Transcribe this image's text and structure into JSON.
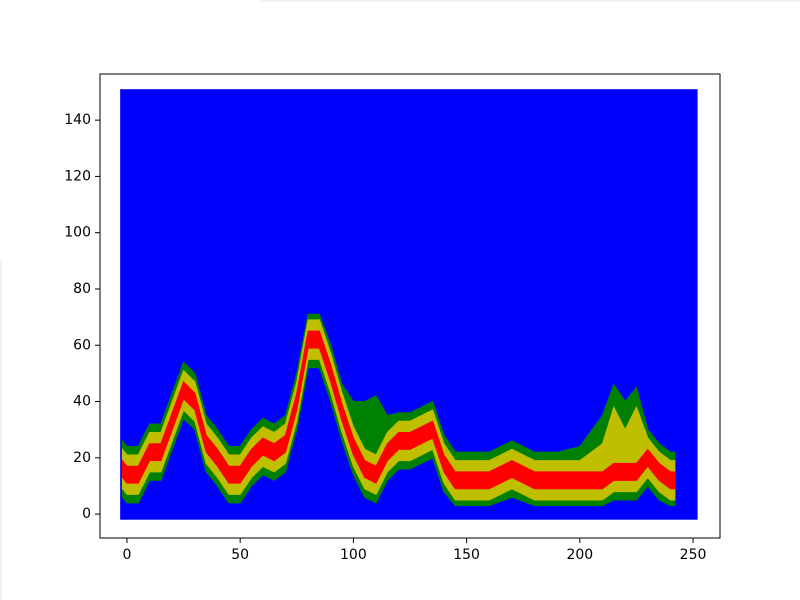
{
  "chart_data": {
    "type": "range_area",
    "xlim": [
      -11.9,
      261.9
    ],
    "ylim": [
      -8.5,
      156.4
    ],
    "xticks": [
      0,
      50,
      100,
      150,
      200,
      250
    ],
    "yticks": [
      0,
      20,
      40,
      60,
      80,
      100,
      120,
      140
    ],
    "background_region": {
      "x": [
        -3,
        252
      ],
      "y": [
        -2,
        151
      ],
      "color": "#0000ff"
    },
    "x": [
      -2,
      0,
      5,
      10,
      15,
      20,
      25,
      30,
      35,
      40,
      45,
      50,
      55,
      60,
      65,
      70,
      75,
      80,
      85,
      90,
      95,
      100,
      105,
      110,
      115,
      120,
      125,
      130,
      135,
      140,
      145,
      150,
      160,
      170,
      180,
      190,
      200,
      210,
      215,
      220,
      225,
      230,
      235,
      240,
      242
    ],
    "series": [
      {
        "color": "#008000",
        "lower": [
          6,
          4,
          4,
          12,
          12,
          23,
          34,
          30,
          15,
          10,
          4,
          4,
          10,
          14,
          12,
          15,
          30,
          52,
          52,
          40,
          26,
          14,
          6,
          4,
          12,
          16,
          16,
          18,
          20,
          8,
          3,
          3,
          3,
          6,
          3,
          3,
          3,
          3,
          5,
          5,
          5,
          10,
          5,
          3,
          3
        ],
        "upper": [
          26,
          24,
          24,
          32,
          32,
          43,
          54,
          50,
          35,
          30,
          24,
          24,
          30,
          34,
          32,
          35,
          50,
          71,
          71,
          60,
          46,
          40,
          40,
          42,
          35,
          36,
          36,
          38,
          40,
          28,
          22,
          22,
          22,
          26,
          22,
          22,
          24,
          35,
          46,
          40,
          45,
          30,
          25,
          22,
          22
        ]
      },
      {
        "color": "#bfbf00",
        "lower": [
          9,
          7,
          7,
          15,
          15,
          26,
          37,
          33,
          18,
          13,
          7,
          7,
          13,
          17,
          15,
          18,
          33,
          55,
          55,
          43,
          29,
          17,
          9,
          7,
          15,
          19,
          19,
          21,
          23,
          11,
          5,
          5,
          5,
          9,
          5,
          5,
          5,
          5,
          8,
          8,
          8,
          13,
          8,
          5,
          5
        ],
        "upper": [
          23,
          21,
          21,
          29,
          29,
          40,
          51,
          47,
          32,
          27,
          21,
          21,
          27,
          31,
          29,
          32,
          47,
          69,
          69,
          57,
          43,
          31,
          23,
          21,
          29,
          33,
          33,
          35,
          37,
          25,
          19,
          19,
          19,
          23,
          19,
          19,
          19,
          25,
          38,
          30,
          38,
          27,
          22,
          19,
          19
        ]
      },
      {
        "color": "#ff0000",
        "lower": [
          13,
          11,
          11,
          19,
          19,
          30,
          41,
          37,
          22,
          17,
          11,
          11,
          17,
          21,
          19,
          22,
          37,
          59,
          59,
          47,
          33,
          21,
          13,
          11,
          19,
          23,
          23,
          25,
          27,
          15,
          9,
          9,
          9,
          13,
          9,
          9,
          9,
          9,
          12,
          12,
          12,
          17,
          12,
          9,
          9
        ],
        "upper": [
          19,
          17,
          17,
          25,
          25,
          36,
          47,
          43,
          28,
          23,
          17,
          17,
          23,
          27,
          25,
          28,
          43,
          65,
          65,
          53,
          39,
          27,
          19,
          17,
          25,
          29,
          29,
          31,
          33,
          21,
          15,
          15,
          15,
          19,
          15,
          15,
          15,
          15,
          18,
          18,
          18,
          23,
          18,
          15,
          15
        ]
      }
    ]
  }
}
